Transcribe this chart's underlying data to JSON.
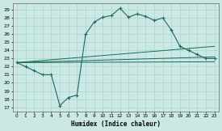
{
  "xlabel": "Humidex (Indice chaleur)",
  "bg_color": "#cce8e4",
  "line_color": "#1a6b5a",
  "grid_color": "#aad4ce",
  "xlim": [
    -0.5,
    23.5
  ],
  "ylim": [
    16.5,
    29.8
  ],
  "yticks": [
    17,
    18,
    19,
    20,
    21,
    22,
    23,
    24,
    25,
    26,
    27,
    28,
    29
  ],
  "xticks": [
    0,
    1,
    2,
    3,
    4,
    5,
    6,
    7,
    8,
    9,
    10,
    11,
    12,
    13,
    14,
    15,
    16,
    17,
    18,
    19,
    20,
    21,
    22,
    23
  ],
  "main_line_x": [
    0,
    1,
    2,
    3,
    4,
    5,
    6,
    7,
    8,
    9,
    10,
    11,
    12,
    13,
    14,
    15,
    16,
    17,
    18,
    19,
    20,
    21,
    22,
    23
  ],
  "main_line_y": [
    22.5,
    22.0,
    21.5,
    21.0,
    21.0,
    17.2,
    18.2,
    18.5,
    26.0,
    27.5,
    28.1,
    28.3,
    29.2,
    28.1,
    28.5,
    28.2,
    27.7,
    28.0,
    26.5,
    24.5,
    24.0,
    23.5,
    23.0,
    23.0
  ],
  "straight_lines": [
    {
      "x": [
        0,
        23
      ],
      "y": [
        22.5,
        24.5
      ]
    },
    {
      "x": [
        0,
        23
      ],
      "y": [
        22.5,
        23.2
      ]
    },
    {
      "x": [
        0,
        23
      ],
      "y": [
        22.5,
        22.6
      ]
    }
  ]
}
